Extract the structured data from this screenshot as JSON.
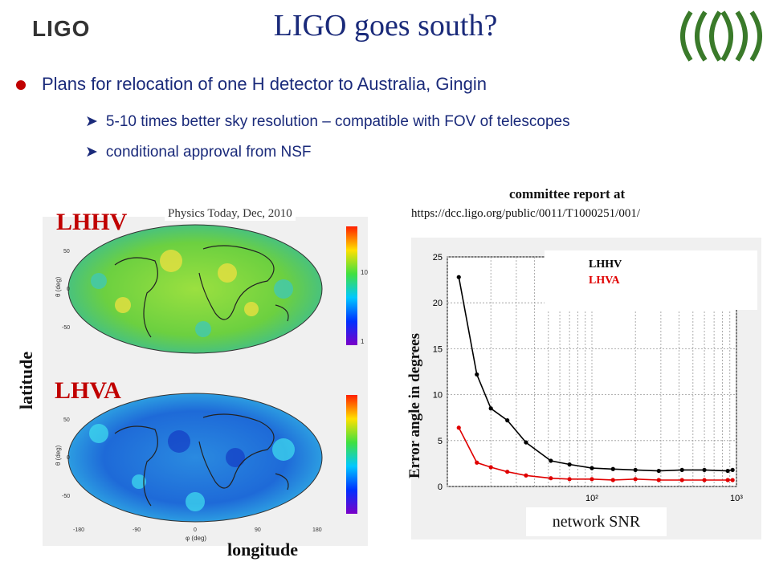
{
  "title": "LIGO goes south?",
  "logo": {
    "text": "LIGO"
  },
  "bullet": "Plans for relocation of one H detector to Australia, Gingin",
  "subbullets": [
    "5-10 times better sky resolution – compatible with FOV of telescopes",
    "conditional approval from NSF"
  ],
  "maps": {
    "source": "Physics Today, Dec, 2010",
    "top_label": "LHHV",
    "bottom_label": "LHVA",
    "ylabel": "latitude",
    "xlabel": "longitude",
    "theta_label": "θ (deg)",
    "phi_label": "φ (deg)",
    "y_ticks": [
      "50",
      "0",
      "-50"
    ],
    "x_ticks": [
      "-180",
      "-90",
      "0",
      "90",
      "180"
    ],
    "colorbar_ticks": [
      "10",
      "1"
    ]
  },
  "report": {
    "heading": "committee report at",
    "url": "https://dcc.ligo.org/public/0011/T1000251/001/"
  },
  "colors": {
    "title": "#1a2a7a",
    "accent_red": "#c00000",
    "lhhv": "#000000",
    "lhva": "#e00000"
  },
  "chart_data": {
    "type": "scatter",
    "xlabel": "network SNR",
    "ylabel": "Error angle in degrees",
    "xscale": "log",
    "xlim": [
      10,
      1000
    ],
    "ylim": [
      0,
      25
    ],
    "y_ticks": [
      0,
      5,
      10,
      15,
      20,
      25
    ],
    "x_tick_labels": [
      {
        "v": 100,
        "t": "10²"
      },
      {
        "v": 1000,
        "t": "10³"
      }
    ],
    "legend_position": "top-right",
    "grid": true,
    "series": [
      {
        "name": "LHHV",
        "color": "#000000",
        "x": [
          12,
          16,
          20,
          26,
          35,
          52,
          70,
          100,
          140,
          200,
          290,
          420,
          600,
          870,
          940
        ],
        "y": [
          22.8,
          12.2,
          8.5,
          7.2,
          4.8,
          2.8,
          2.4,
          2.0,
          1.9,
          1.8,
          1.7,
          1.8,
          1.8,
          1.7,
          1.8
        ]
      },
      {
        "name": "LHVA",
        "color": "#e00000",
        "x": [
          12,
          16,
          20,
          26,
          35,
          52,
          70,
          100,
          140,
          200,
          290,
          420,
          600,
          870,
          940
        ],
        "y": [
          6.4,
          2.6,
          2.1,
          1.6,
          1.2,
          0.9,
          0.8,
          0.8,
          0.7,
          0.8,
          0.7,
          0.7,
          0.7,
          0.7,
          0.7
        ]
      }
    ]
  }
}
